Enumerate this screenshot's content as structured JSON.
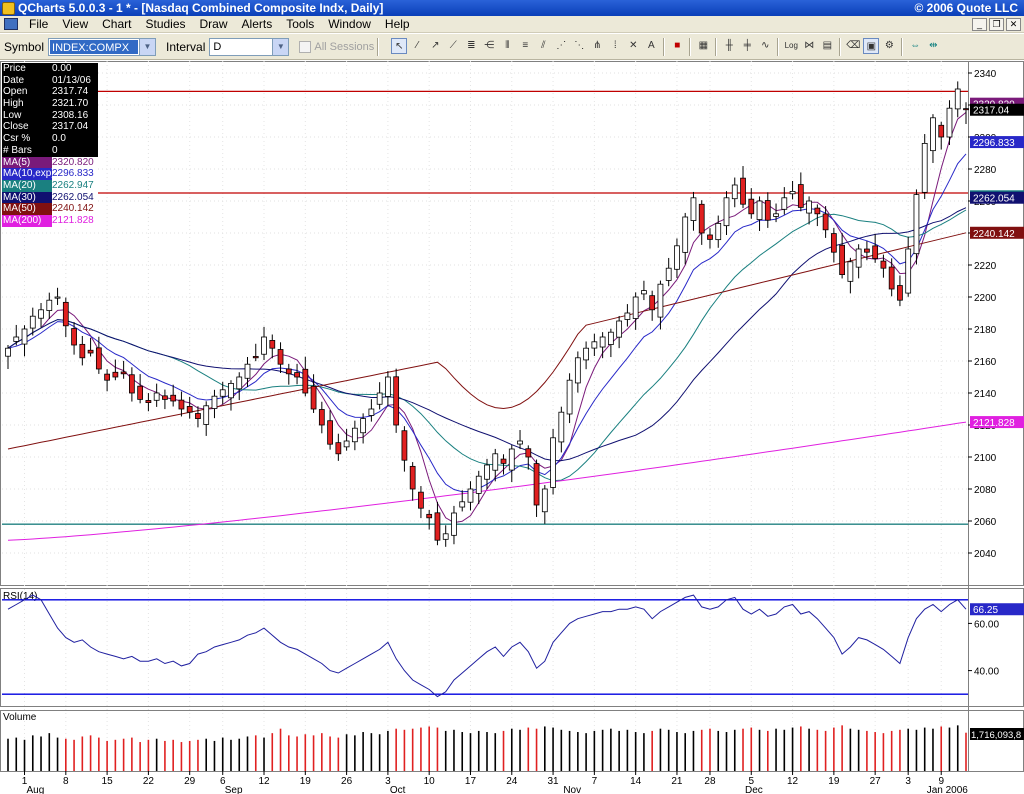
{
  "window": {
    "title": "QCharts 5.0.0.3 - 1 * - [Nasdaq Combined Composite Indx, Daily]",
    "copyright": "© 2006 Quote LLC"
  },
  "menu": [
    "File",
    "View",
    "Chart",
    "Studies",
    "Draw",
    "Alerts",
    "Tools",
    "Window",
    "Help"
  ],
  "toolbar": {
    "symbol_label": "Symbol",
    "symbol_value": "INDEX:COMPX",
    "interval_label": "Interval",
    "interval_value": "D",
    "all_sessions_label": "All Sessions"
  },
  "info": [
    {
      "k": "Price",
      "v": "0.00",
      "color": "#000000"
    },
    {
      "k": "Date",
      "v": "01/13/06",
      "color": "#000000"
    },
    {
      "k": "Open",
      "v": "2317.74",
      "color": "#000000"
    },
    {
      "k": "High",
      "v": "2321.70",
      "color": "#000000"
    },
    {
      "k": "Low",
      "v": "2308.16",
      "color": "#000000"
    },
    {
      "k": "Close",
      "v": "2317.04",
      "color": "#000000"
    },
    {
      "k": "Csr %",
      "v": "0.0",
      "color": "#000000"
    },
    {
      "k": "# Bars",
      "v": "0",
      "color": "#000000"
    },
    {
      "k": "MA(5)",
      "v": "2320.820",
      "color": "#7a1a7a"
    },
    {
      "k": "MA(10,exp)",
      "v": "2296.833",
      "color": "#2828c8"
    },
    {
      "k": "MA(20)",
      "v": "2262.947",
      "color": "#1a8080"
    },
    {
      "k": "MA(30)",
      "v": "2262.054",
      "color": "#101070"
    },
    {
      "k": "MA(50)",
      "v": "2240.142",
      "color": "#801010"
    },
    {
      "k": "MA(200)",
      "v": "2121.828",
      "color": "#e020e0"
    }
  ],
  "chart_data": {
    "type": "candlestick",
    "symbol": "INDEX:COMPX",
    "price_ylim": [
      2020,
      2345
    ],
    "price_ticks": [
      2040,
      2060,
      2080,
      2100,
      2120,
      2140,
      2160,
      2180,
      2200,
      2220,
      2240,
      2260,
      2280,
      2300,
      2320,
      2340
    ],
    "horizontal_lines": [
      {
        "value": 2328.5,
        "color": "#c00000"
      },
      {
        "value": 2265,
        "color": "#c00000"
      },
      {
        "value": 2058,
        "color": "#208080"
      }
    ],
    "day_labels": [
      {
        "i": 2,
        "t": "1"
      },
      {
        "i": 7,
        "t": "8"
      },
      {
        "i": 12,
        "t": "15"
      },
      {
        "i": 17,
        "t": "22"
      },
      {
        "i": 22,
        "t": "29"
      },
      {
        "i": 26,
        "t": "6"
      },
      {
        "i": 31,
        "t": "12"
      },
      {
        "i": 36,
        "t": "19"
      },
      {
        "i": 41,
        "t": "26"
      },
      {
        "i": 46,
        "t": "3"
      },
      {
        "i": 51,
        "t": "10"
      },
      {
        "i": 56,
        "t": "17"
      },
      {
        "i": 61,
        "t": "24"
      },
      {
        "i": 66,
        "t": "31"
      },
      {
        "i": 71,
        "t": "7"
      },
      {
        "i": 76,
        "t": "14"
      },
      {
        "i": 81,
        "t": "21"
      },
      {
        "i": 85,
        "t": "28"
      },
      {
        "i": 90,
        "t": "5"
      },
      {
        "i": 95,
        "t": "12"
      },
      {
        "i": 100,
        "t": "19"
      },
      {
        "i": 105,
        "t": "27"
      },
      {
        "i": 109,
        "t": "3"
      },
      {
        "i": 113,
        "t": "9"
      }
    ],
    "month_labels": [
      {
        "i": 2,
        "t": "Aug"
      },
      {
        "i": 26,
        "t": "Sep"
      },
      {
        "i": 46,
        "t": "Oct"
      },
      {
        "i": 67,
        "t": "Nov"
      },
      {
        "i": 89,
        "t": "Dec"
      },
      {
        "i": 111,
        "t": "Jan 2006"
      }
    ],
    "closes": [
      2168,
      2175,
      2180,
      2188,
      2192,
      2198,
      2200,
      2182,
      2170,
      2162,
      2165,
      2155,
      2148,
      2150,
      2152,
      2140,
      2136,
      2134,
      2140,
      2136,
      2135,
      2130,
      2128,
      2124,
      2132,
      2138,
      2142,
      2146,
      2150,
      2158,
      2162,
      2175,
      2168,
      2158,
      2152,
      2150,
      2140,
      2130,
      2120,
      2108,
      2102,
      2110,
      2118,
      2124,
      2130,
      2140,
      2150,
      2120,
      2098,
      2080,
      2068,
      2062,
      2048,
      2052,
      2065,
      2072,
      2080,
      2088,
      2095,
      2102,
      2096,
      2105,
      2110,
      2100,
      2070,
      2080,
      2112,
      2128,
      2148,
      2162,
      2168,
      2172,
      2175,
      2178,
      2185,
      2190,
      2200,
      2204,
      2192,
      2208,
      2218,
      2232,
      2250,
      2262,
      2240,
      2236,
      2246,
      2262,
      2270,
      2258,
      2252,
      2260,
      2248,
      2252,
      2262,
      2266,
      2256,
      2260,
      2252,
      2242,
      2228,
      2214,
      2222,
      2230,
      2228,
      2224,
      2218,
      2205,
      2198,
      2230,
      2264,
      2296,
      2312,
      2300,
      2318,
      2330,
      2317
    ],
    "ma_series": [
      {
        "name": "MA(5)",
        "color": "#7a1a7a",
        "last": "2320.820",
        "last_value": 2320.82
      },
      {
        "name": "MA(10,exp)",
        "color": "#2828c8",
        "last": "2296.833",
        "last_value": 2296.833
      },
      {
        "name": "MA(20)",
        "color": "#1a8080",
        "last": "2262.947",
        "last_value": 2262.947
      },
      {
        "name": "MA(30)",
        "color": "#101070",
        "last": "2262.054",
        "last_value": 2262.054
      },
      {
        "name": "MA(50)",
        "color": "#801010",
        "last": "2240.142",
        "last_value": 2240.142
      },
      {
        "name": "MA(200)",
        "color": "#e020e0",
        "last": "2121.828",
        "last_value": 2121.828
      }
    ],
    "last_close_label": "2317.04",
    "rsi": {
      "label": "RSI(14)",
      "ylim": [
        25,
        75
      ],
      "ticks": [
        40,
        60
      ],
      "levels": [
        70,
        30
      ],
      "last_label": "66.25",
      "values": [
        66,
        68,
        70,
        72,
        70,
        64,
        58,
        54,
        52,
        53,
        50,
        48,
        47,
        46,
        45,
        46,
        44,
        44,
        45,
        43,
        44,
        42,
        43,
        47,
        48,
        50,
        51,
        52,
        53,
        55,
        56,
        58,
        55,
        52,
        50,
        49,
        47,
        45,
        43,
        40,
        39,
        41,
        43,
        45,
        47,
        49,
        52,
        45,
        40,
        36,
        34,
        32,
        29,
        31,
        36,
        39,
        42,
        45,
        48,
        50,
        46,
        50,
        52,
        48,
        41,
        44,
        52,
        56,
        60,
        62,
        63,
        64,
        65,
        65,
        66,
        66,
        67,
        66,
        62,
        65,
        67,
        69,
        71,
        72,
        67,
        66,
        67,
        70,
        71,
        66,
        64,
        66,
        63,
        64,
        67,
        68,
        64,
        65,
        62,
        58,
        54,
        47,
        50,
        54,
        53,
        51,
        49,
        46,
        43,
        54,
        62,
        66,
        68,
        65,
        68,
        70,
        66
      ]
    },
    "volume": {
      "label": "Volume",
      "last_label": "1,716,093,8",
      "values": [
        1.45,
        1.5,
        1.4,
        1.6,
        1.55,
        1.7,
        1.5,
        1.45,
        1.4,
        1.55,
        1.6,
        1.5,
        1.35,
        1.4,
        1.45,
        1.5,
        1.3,
        1.4,
        1.45,
        1.35,
        1.4,
        1.3,
        1.35,
        1.4,
        1.45,
        1.35,
        1.5,
        1.4,
        1.45,
        1.55,
        1.6,
        1.5,
        1.7,
        1.9,
        1.6,
        1.55,
        1.65,
        1.6,
        1.7,
        1.55,
        1.5,
        1.65,
        1.6,
        1.75,
        1.7,
        1.65,
        1.8,
        1.9,
        1.85,
        1.9,
        1.95,
        2.0,
        1.95,
        1.8,
        1.85,
        1.75,
        1.7,
        1.8,
        1.75,
        1.7,
        1.8,
        1.9,
        1.85,
        1.95,
        1.9,
        2.0,
        1.95,
        1.85,
        1.8,
        1.75,
        1.7,
        1.8,
        1.85,
        1.9,
        1.8,
        1.85,
        1.75,
        1.7,
        1.8,
        1.9,
        1.85,
        1.75,
        1.7,
        1.8,
        1.85,
        1.9,
        1.8,
        1.75,
        1.85,
        1.9,
        1.95,
        1.85,
        1.8,
        1.9,
        1.85,
        1.95,
        2.0,
        1.9,
        1.85,
        1.8,
        1.95,
        2.05,
        1.9,
        1.85,
        1.8,
        1.75,
        1.7,
        1.8,
        1.85,
        1.9,
        1.85,
        1.95,
        1.9,
        2.0,
        1.95,
        2.05,
        1.72
      ]
    }
  }
}
